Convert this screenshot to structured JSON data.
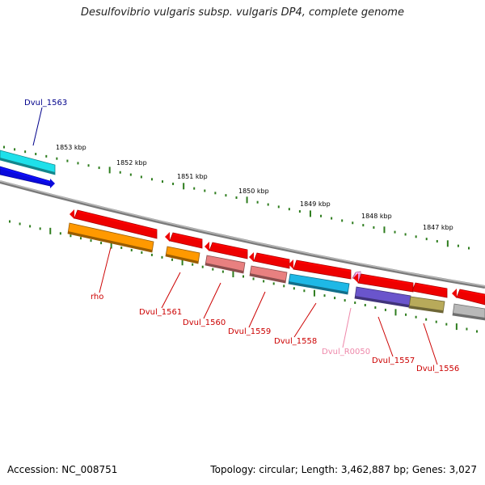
{
  "title": "Desulfovibrio vulgaris subsp. vulgaris DP4, complete genome",
  "footer": {
    "accession": "Accession: NC_008751",
    "summary": "Topology: circular; Length: 3,462,887 bp; Genes: 3,027"
  },
  "ticks": [
    "1853 kbp",
    "1852 kbp",
    "1851 kbp",
    "1850 kbp",
    "1849 kbp",
    "1848 kbp",
    "1847 kbp"
  ],
  "colors": {
    "backbone": "#7a7a7a",
    "tick": "#2e7d1e",
    "forward_label": "#00008b",
    "reverse_label": "#cc0000",
    "rna_label": "#ee88aa"
  },
  "genes": [
    {
      "id": "dvul1563",
      "name": "Dvul_1563",
      "strand": "forward",
      "feature": "CDS",
      "color": "#0a0adc",
      "function_color": "#1ee0ea",
      "label_color": "#00008b"
    },
    {
      "id": "rho",
      "name": "rho",
      "strand": "reverse",
      "feature": "CDS",
      "color": "#ee0000",
      "function_color": "#ff9900",
      "label_color": "#cc0000"
    },
    {
      "id": "dvul1561",
      "name": "Dvul_1561",
      "strand": "reverse",
      "feature": "CDS",
      "color": "#ee0000",
      "function_color": "#ff9900",
      "label_color": "#cc0000"
    },
    {
      "id": "dvul1560",
      "name": "Dvul_1560",
      "strand": "reverse",
      "feature": "CDS",
      "color": "#ee0000",
      "function_color": "#e88080",
      "label_color": "#cc0000"
    },
    {
      "id": "dvul1559",
      "name": "Dvul_1559",
      "strand": "reverse",
      "feature": "CDS",
      "color": "#ee0000",
      "function_color": "#e88080",
      "label_color": "#cc0000"
    },
    {
      "id": "dvul1558",
      "name": "Dvul_1558",
      "strand": "reverse",
      "feature": "CDS",
      "color": "#ee0000",
      "function_color": "#1eb8e6",
      "label_color": "#cc0000"
    },
    {
      "id": "dvulr0050",
      "name": "Dvul_R0050",
      "strand": "reverse",
      "feature": "tRNA",
      "color": "#ee88cc",
      "function_color": "",
      "label_color": "#ee88aa"
    },
    {
      "id": "dvul1557",
      "name": "Dvul_1557",
      "strand": "reverse",
      "feature": "CDS",
      "color": "#ee0000",
      "function_color": "#6a55cc",
      "label_color": "#cc0000"
    },
    {
      "id": "dvul1556",
      "name": "Dvul_1556",
      "strand": "reverse",
      "feature": "CDS",
      "color": "#ee0000",
      "function_color": "#b8aa5a",
      "label_color": "#cc0000"
    },
    {
      "id": "dvul1555",
      "name": "",
      "strand": "reverse",
      "feature": "CDS",
      "color": "#ee0000",
      "function_color": "#b8b8b8",
      "label_color": "#cc0000"
    }
  ]
}
